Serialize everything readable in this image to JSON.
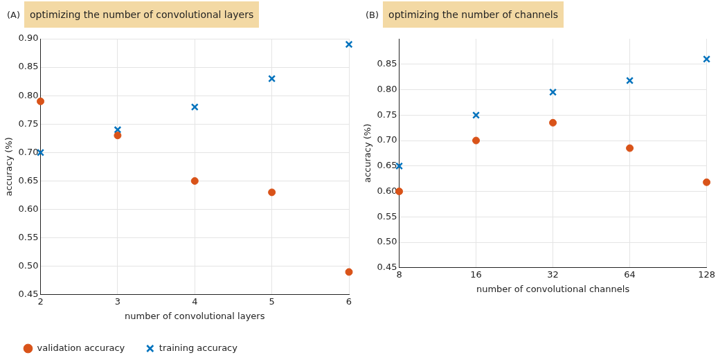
{
  "chart_data": [
    {
      "type": "scatter",
      "title": "optimizing the number of convolutional layers",
      "annotations": [
        "(A)"
      ],
      "xlabel": "number of convolutional layers",
      "ylabel": "accuracy (%)",
      "x": [
        2,
        3,
        4,
        5,
        6
      ],
      "xlim": [
        2,
        6
      ],
      "xticks": [
        2,
        3,
        4,
        5,
        6
      ],
      "ylim": [
        0.45,
        0.9
      ],
      "yticks": [
        {
          "value": 0.45,
          "label": "0.45"
        },
        {
          "value": 0.5,
          "label": "0.50"
        },
        {
          "value": 0.55,
          "label": "0.55"
        },
        {
          "value": 0.6,
          "label": "0.60"
        },
        {
          "value": 0.65,
          "label": "0.65"
        },
        {
          "value": 0.7,
          "label": "0.70"
        },
        {
          "value": 0.75,
          "label": "0.75"
        },
        {
          "value": 0.8,
          "label": "0.80"
        },
        {
          "value": 0.85,
          "label": "0.85"
        },
        {
          "value": 0.9,
          "label": "0.90"
        }
      ],
      "grid": true,
      "legend": "bottom left",
      "series": [
        {
          "name": "validation accuracy",
          "color": "#d95319",
          "marker": "circle",
          "values": [
            0.79,
            0.73,
            0.65,
            0.63,
            0.49
          ]
        },
        {
          "name": "training accuracy",
          "color": "#0072bd",
          "marker": "cross",
          "values": [
            0.7,
            0.74,
            0.78,
            0.83,
            0.89
          ]
        }
      ]
    },
    {
      "type": "scatter",
      "title": "optimizing the number of channels",
      "annotations": [
        "(B)"
      ],
      "xlabel": "number of convolutional channels",
      "ylabel": "accuracy (%)",
      "log": "x",
      "x": [
        8,
        16,
        32,
        64,
        128
      ],
      "xlim": [
        8,
        128
      ],
      "xticks": [
        8,
        16,
        32,
        64,
        128
      ],
      "ylim": [
        0.45,
        0.9
      ],
      "yticks": [
        {
          "value": 0.45,
          "label": "0.45"
        },
        {
          "value": 0.5,
          "label": "0.50"
        },
        {
          "value": 0.55,
          "label": "0.55"
        },
        {
          "value": 0.6,
          "label": "0.60"
        },
        {
          "value": 0.65,
          "label": "0.65"
        },
        {
          "value": 0.7,
          "label": "0.70"
        },
        {
          "value": 0.75,
          "label": "0.75"
        },
        {
          "value": 0.8,
          "label": "0.80"
        },
        {
          "value": 0.85,
          "label": "0.85"
        }
      ],
      "grid": true,
      "series": [
        {
          "color": "#d95319",
          "marker": "circle",
          "values": [
            0.6,
            0.7,
            0.735,
            0.685,
            0.618
          ]
        },
        {
          "color": "#0072bd",
          "marker": "cross",
          "values": [
            0.65,
            0.75,
            0.795,
            0.818,
            0.86
          ]
        }
      ]
    }
  ]
}
